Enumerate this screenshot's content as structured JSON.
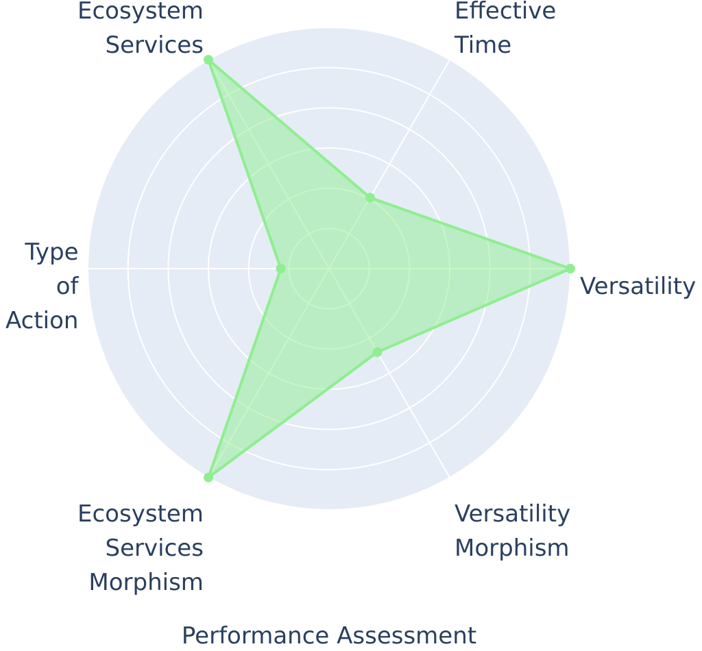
{
  "chart_data": {
    "type": "radar",
    "title": "Performance Assessment",
    "categories": [
      "Versatility",
      "Effective Time",
      "Ecosystem Services",
      "Type of Action",
      "Ecosystem Services Morphism",
      "Versatility Morphism"
    ],
    "category_lines": [
      [
        "Versatility"
      ],
      [
        "Effective",
        "Time"
      ],
      [
        "Ecosystem",
        "Services"
      ],
      [
        "Type",
        "of",
        "Action"
      ],
      [
        "Ecosystem",
        "Services",
        "Morphism"
      ],
      [
        "Versatility",
        "Morphism"
      ]
    ],
    "series": [
      {
        "values": [
          5,
          1.7,
          5,
          1,
          5,
          2
        ]
      }
    ],
    "rlim": [
      0,
      5
    ],
    "rings": 6,
    "grid": true,
    "legend": "none",
    "colors": {
      "polar_bg": "#e5ecf6",
      "grid": "#ffffff",
      "line": "#90ee90",
      "fill": "rgba(144,238,144,0.5)",
      "text": "#2a3f5f"
    }
  }
}
